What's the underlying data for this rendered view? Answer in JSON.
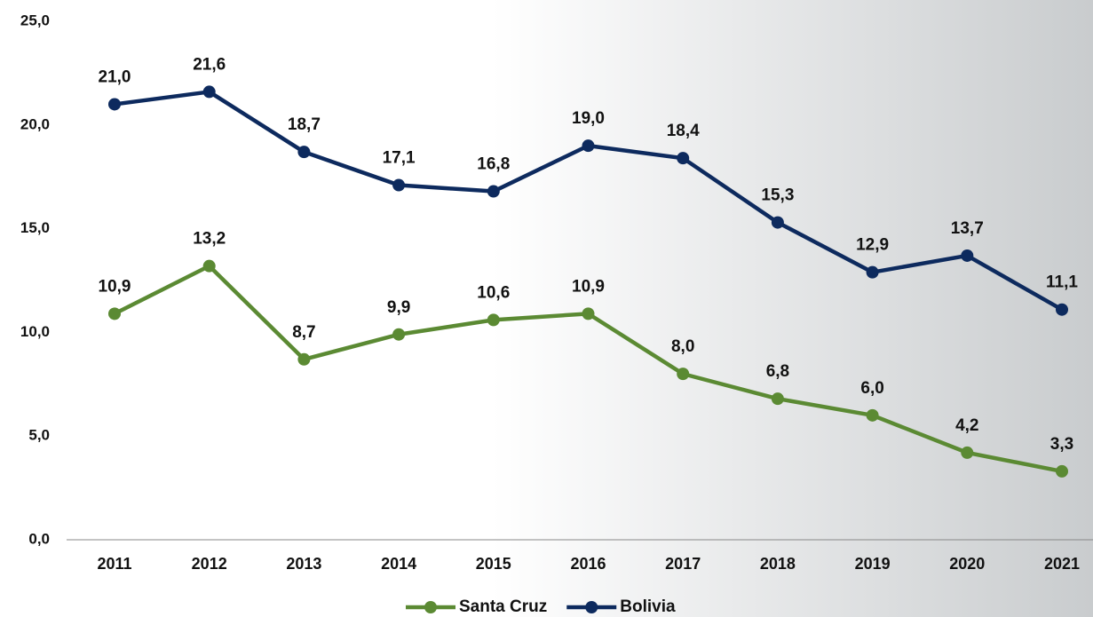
{
  "chart_data": {
    "type": "line",
    "categories": [
      "2011",
      "2012",
      "2013",
      "2014",
      "2015",
      "2016",
      "2017",
      "2018",
      "2019",
      "2020",
      "2021"
    ],
    "series": [
      {
        "name": "Santa Cruz",
        "color": "#5b8a33",
        "values": [
          10.9,
          13.2,
          8.7,
          9.9,
          10.6,
          10.9,
          8.0,
          6.8,
          6.0,
          4.2,
          3.3
        ],
        "value_labels": [
          "10,9",
          "13,2",
          "8,7",
          "9,9",
          "10,6",
          "10,9",
          "8,0",
          "6,8",
          "6,0",
          "4,2",
          "3,3"
        ]
      },
      {
        "name": "Bolivia",
        "color": "#0d2a5e",
        "values": [
          21.0,
          21.6,
          18.7,
          17.1,
          16.8,
          19.0,
          18.4,
          15.3,
          12.9,
          13.7,
          11.1
        ],
        "value_labels": [
          "21,0",
          "21,6",
          "18,7",
          "17,1",
          "16,8",
          "19,0",
          "18,4",
          "15,3",
          "12,9",
          "13,7",
          "11,1"
        ]
      }
    ],
    "ylim": [
      0,
      25
    ],
    "yticks": [
      {
        "value": 0,
        "label": "0,0"
      },
      {
        "value": 5,
        "label": "5,0"
      },
      {
        "value": 10,
        "label": "10,0"
      },
      {
        "value": 15,
        "label": "15,0"
      },
      {
        "value": 20,
        "label": "20,0"
      },
      {
        "value": 25,
        "label": "25,0"
      }
    ],
    "grid": false,
    "legend": "bottom"
  }
}
